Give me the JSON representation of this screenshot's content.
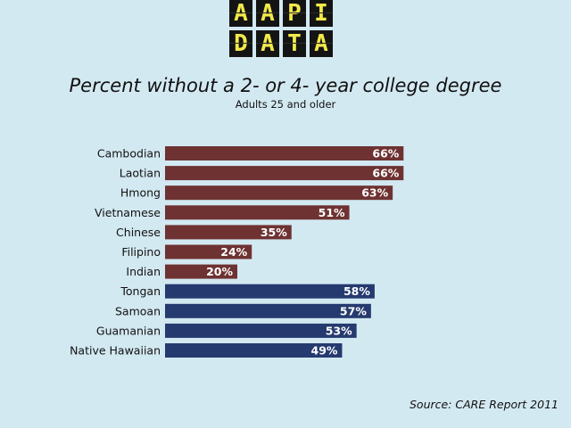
{
  "logo": {
    "row1": [
      "A",
      "A",
      "P",
      "I"
    ],
    "row2": [
      "D",
      "A",
      "T",
      "A"
    ]
  },
  "colors": {
    "asian": "#6e3232",
    "pacific": "#253a6e",
    "background": "#d3e9f2"
  },
  "chart_data": {
    "type": "bar",
    "orientation": "horizontal",
    "title": "Percent without a 2- or 4- year college degree",
    "subtitle": "Adults 25 and older",
    "categories": [
      "Cambodian",
      "Laotian",
      "Hmong",
      "Vietnamese",
      "Chinese",
      "Filipino",
      "Indian",
      "Tongan",
      "Samoan",
      "Guamanian",
      "Native Hawaiian"
    ],
    "values": [
      66,
      66,
      63,
      51,
      35,
      24,
      20,
      58,
      57,
      53,
      49
    ],
    "labels": [
      "66%",
      "66%",
      "63%",
      "51%",
      "35%",
      "24%",
      "20%",
      "58%",
      "57%",
      "53%",
      "49%"
    ],
    "groups": [
      "asian",
      "asian",
      "asian",
      "asian",
      "asian",
      "asian",
      "asian",
      "pacific",
      "pacific",
      "pacific",
      "pacific"
    ],
    "xlim": [
      0,
      100
    ],
    "unit": "%"
  },
  "source": "Source: CARE Report 2011"
}
